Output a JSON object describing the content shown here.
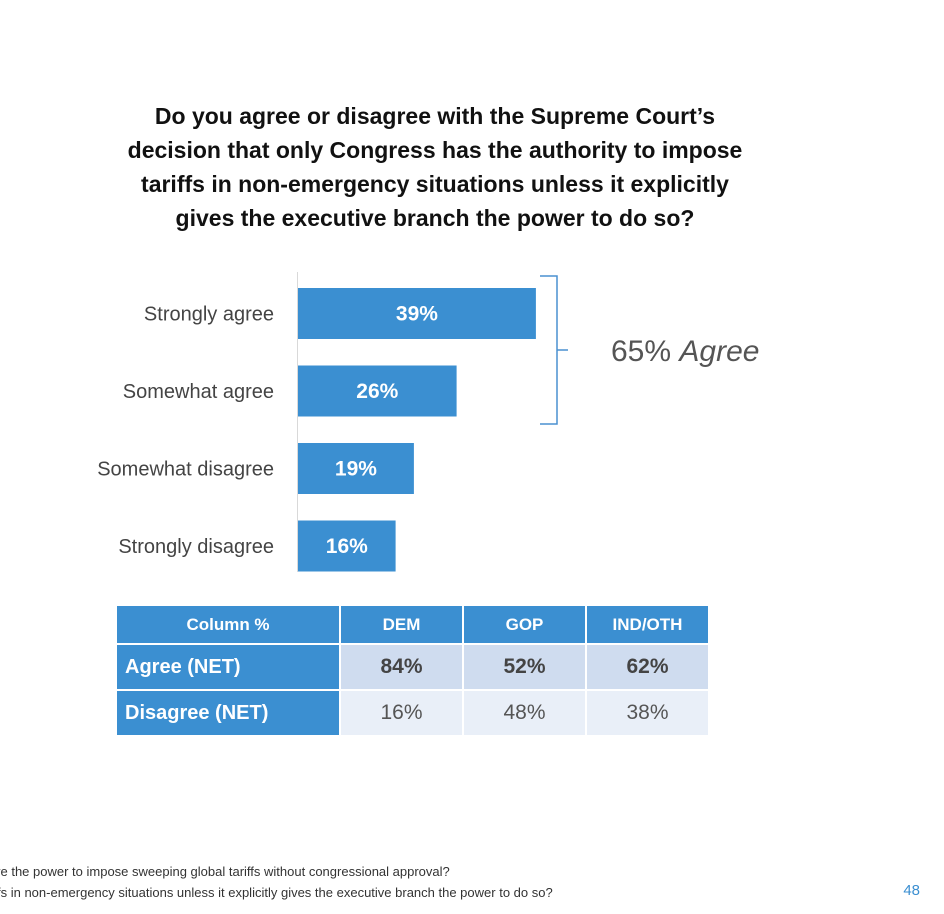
{
  "title_lines": [
    "Do you agree or disagree with the Supreme Court’s",
    "decision that only Congress has the authority to impose",
    "tariffs in non-emergency situations unless it explicitly",
    "gives the executive branch the power to do so?"
  ],
  "chart_data": {
    "type": "bar",
    "orientation": "horizontal",
    "categories": [
      "Strongly agree",
      "Somewhat agree",
      "Somewhat disagree",
      "Strongly disagree"
    ],
    "values": [
      39,
      26,
      19,
      16
    ],
    "value_labels": [
      "39%",
      "26%",
      "19%",
      "16%"
    ],
    "xlim": [
      0,
      100
    ],
    "bar_color": "#3b8fd1",
    "annotation": {
      "text_number": "65%",
      "text_word": "Agree",
      "spans": [
        "Strongly agree",
        "Somewhat agree"
      ]
    }
  },
  "table": {
    "header": [
      "Column %",
      "DEM",
      "GOP",
      "IND/OTH"
    ],
    "rows": [
      {
        "label": "Agree (NET)",
        "values": [
          "84%",
          "52%",
          "62%"
        ]
      },
      {
        "label": "Disagree (NET)",
        "values": [
          "16%",
          "48%",
          "38%"
        ]
      }
    ]
  },
  "footnotes": [
    "ve the power to impose sweeping global tariffs without congressional approval?",
    "fs in non-emergency situations unless it explicitly gives the executive branch the power to do so?"
  ],
  "page_number": "48",
  "colors": {
    "accent": "#3b8fd1",
    "row_agree": "#cfdcef",
    "row_disagree": "#e9eff8"
  }
}
